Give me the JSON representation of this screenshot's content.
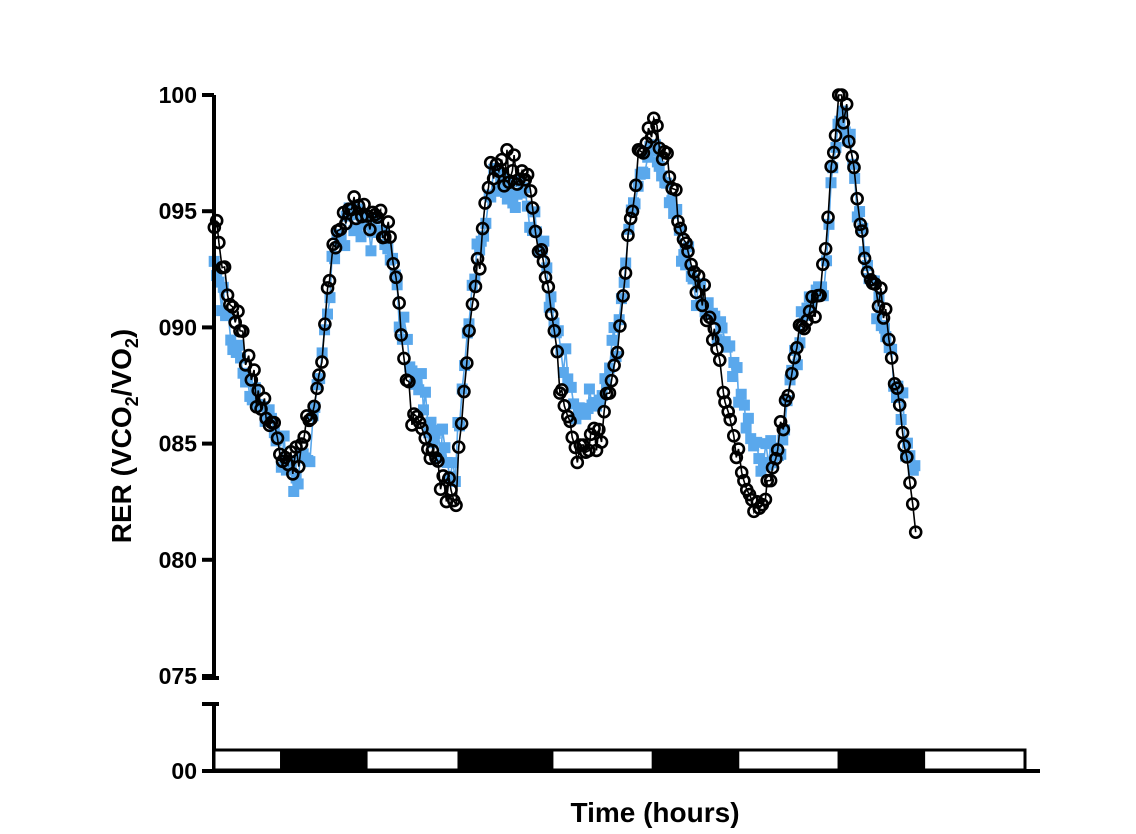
{
  "chart_data": {
    "type": "scatter",
    "xlabel": "Time (hours)",
    "ylabel": {
      "prefix": "RER (VCO",
      "sub1": "2",
      "mid": "/VO",
      "sub2": "2",
      "suffix": ")"
    },
    "ylim": [
      0.75,
      1.0
    ],
    "ylim_broken_lower": 0.0,
    "y_ticks": [
      "100",
      "095",
      "090",
      "085",
      "080",
      "075"
    ],
    "y_tick_values": [
      1.0,
      0.95,
      0.9,
      0.85,
      0.8,
      0.75
    ],
    "y_bottom_tick": "00",
    "x_units": "hours",
    "xlim": [
      0,
      96
    ],
    "light_dark_bar": [
      {
        "from": 0,
        "to": 8,
        "phase": "light"
      },
      {
        "from": 8,
        "to": 18,
        "phase": "dark"
      },
      {
        "from": 18,
        "to": 29,
        "phase": "light"
      },
      {
        "from": 29,
        "to": 40,
        "phase": "dark"
      },
      {
        "from": 40,
        "to": 52,
        "phase": "light"
      },
      {
        "from": 52,
        "to": 62,
        "phase": "dark"
      },
      {
        "from": 62,
        "to": 74,
        "phase": "light"
      },
      {
        "from": 74,
        "to": 84,
        "phase": "dark"
      },
      {
        "from": 84,
        "to": 96,
        "phase": "light"
      }
    ],
    "series": [
      {
        "marker": "filled-square",
        "color": "#5aa8ec",
        "points_per_hour": 3.5,
        "keyframes_x": [
          0,
          2,
          5,
          8,
          9.5,
          11,
          12.5,
          14,
          16,
          18,
          19.5,
          21,
          23,
          26,
          28.5,
          30.5,
          33,
          37,
          39,
          41,
          43,
          46,
          48,
          50,
          52,
          54,
          57,
          59,
          61,
          62.5,
          64,
          67,
          68.5,
          70,
          72,
          73,
          74,
          75,
          77,
          80,
          83
        ],
        "keyframes_y": [
          0.925,
          0.895,
          0.87,
          0.846,
          0.834,
          0.845,
          0.875,
          0.93,
          0.945,
          0.94,
          0.945,
          0.93,
          0.885,
          0.858,
          0.84,
          0.915,
          0.965,
          0.955,
          0.93,
          0.89,
          0.86,
          0.87,
          0.905,
          0.962,
          0.98,
          0.955,
          0.92,
          0.905,
          0.89,
          0.872,
          0.842,
          0.845,
          0.882,
          0.908,
          0.915,
          0.955,
          0.992,
          0.988,
          0.93,
          0.89,
          0.835
        ],
        "noise": 0.013
      },
      {
        "marker": "open-circle",
        "color": "#000000",
        "points_per_hour": 3.2,
        "keyframes_x": [
          0,
          2,
          5,
          8,
          9.5,
          11,
          12.5,
          14,
          16,
          18,
          19.5,
          21,
          23,
          26,
          28.5,
          30.5,
          33,
          37,
          39,
          41,
          43,
          46,
          48,
          50,
          52,
          54,
          57,
          59,
          61,
          62.5,
          64,
          67,
          68.5,
          70,
          72,
          73,
          74,
          75,
          77,
          80,
          83
        ],
        "keyframes_y": [
          0.95,
          0.91,
          0.875,
          0.849,
          0.84,
          0.855,
          0.88,
          0.935,
          0.952,
          0.945,
          0.95,
          0.935,
          0.87,
          0.845,
          0.825,
          0.91,
          0.97,
          0.965,
          0.93,
          0.875,
          0.845,
          0.858,
          0.9,
          0.965,
          0.988,
          0.962,
          0.922,
          0.9,
          0.862,
          0.835,
          0.822,
          0.85,
          0.882,
          0.905,
          0.918,
          0.96,
          0.997,
          0.99,
          0.93,
          0.895,
          0.815
        ],
        "noise": 0.011
      }
    ]
  }
}
